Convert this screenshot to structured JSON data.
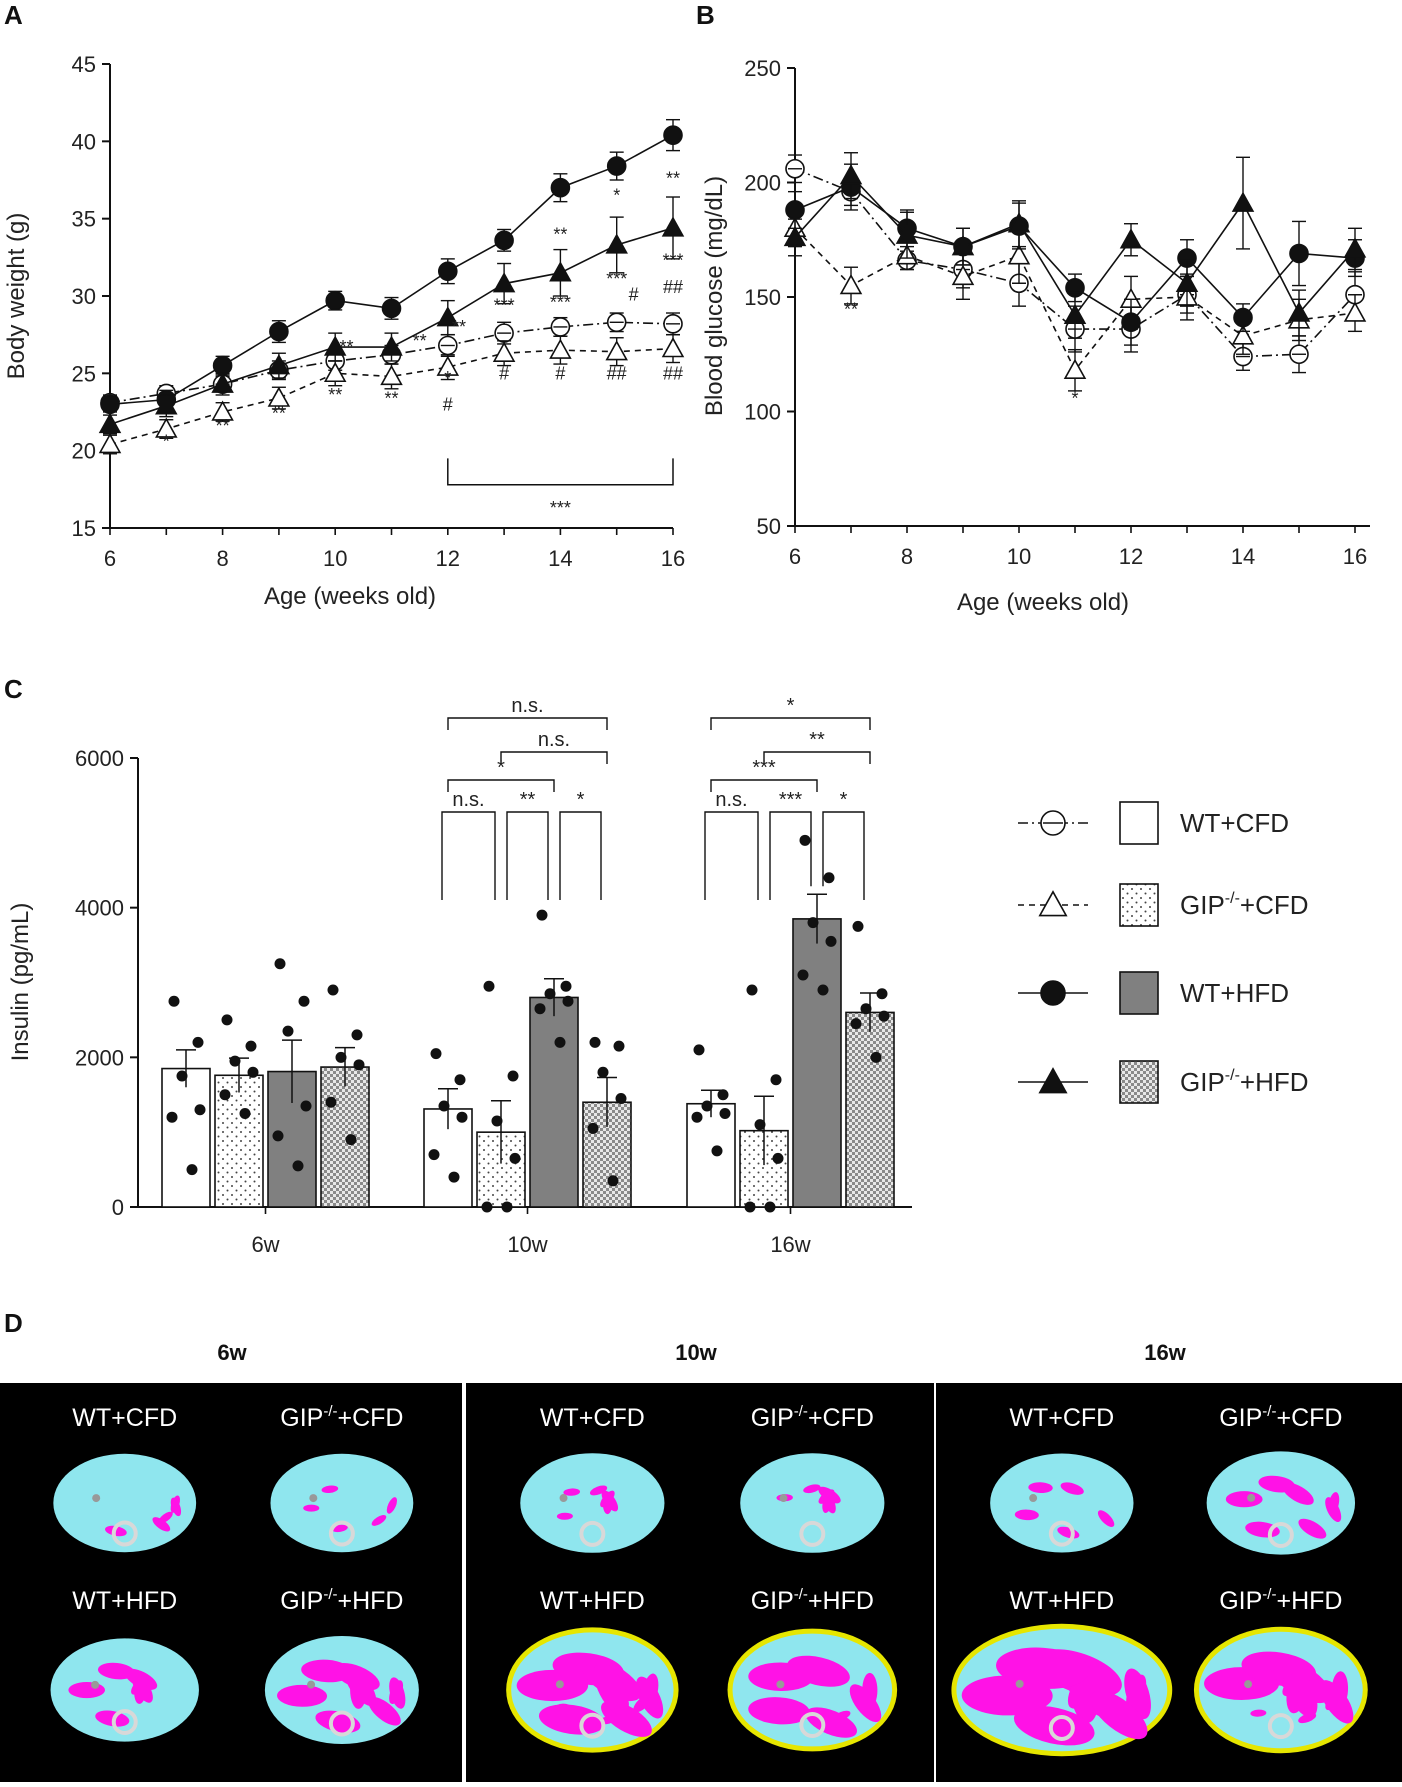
{
  "panel_labels": [
    "A",
    "B",
    "C",
    "D"
  ],
  "colors": {
    "lean": "#8fe6ee",
    "fat_visceral": "#ff12e6",
    "fat_sc": "#e6e600",
    "bone": "#d8d8d8",
    "bar_hfd": "#808080"
  },
  "legend": [
    {
      "name": "WT+CFD",
      "sup": "",
      "suffix": "",
      "marker": "open-circle",
      "line": "dashdot",
      "bar": "white"
    },
    {
      "name": "GIP",
      "sup": "-/-",
      "suffix": "+CFD",
      "marker": "open-triangle",
      "line": "dashed",
      "bar": "dotted"
    },
    {
      "name": "WT+HFD",
      "sup": "",
      "suffix": "",
      "marker": "filled-circle",
      "line": "solid",
      "bar": "grey"
    },
    {
      "name": "GIP",
      "sup": "-/-",
      "suffix": "+HFD",
      "marker": "filled-triangle",
      "line": "solid",
      "bar": "checker"
    }
  ],
  "chart_data": [
    {
      "panel": "A",
      "type": "line",
      "xlabel": "Age (weeks old)",
      "ylabel": "Body weight (g)",
      "xlim": [
        6,
        16
      ],
      "ylim": [
        15,
        45
      ],
      "xticks": [
        6,
        8,
        10,
        12,
        14,
        16
      ],
      "yticks": [
        15,
        20,
        25,
        30,
        35,
        40,
        45
      ],
      "x": [
        6,
        7,
        8,
        9,
        10,
        11,
        12,
        13,
        14,
        15,
        16
      ],
      "series": [
        {
          "name": "WT+CFD",
          "values": [
            23.1,
            23.7,
            24.3,
            25.2,
            25.8,
            26.2,
            26.8,
            27.6,
            28.0,
            28.3,
            28.2
          ],
          "err": [
            0.5,
            0.5,
            0.5,
            0.6,
            0.6,
            0.6,
            0.7,
            0.7,
            0.6,
            0.6,
            0.7
          ]
        },
        {
          "name": "GIP-/-+CFD",
          "values": [
            20.4,
            21.4,
            22.5,
            23.4,
            25.0,
            24.8,
            25.4,
            26.3,
            26.5,
            26.4,
            26.6
          ],
          "err": [
            0.6,
            0.6,
            0.6,
            0.7,
            0.8,
            0.8,
            0.8,
            0.8,
            0.9,
            0.9,
            0.9
          ]
        },
        {
          "name": "WT+HFD",
          "values": [
            23.0,
            23.3,
            25.5,
            27.7,
            29.7,
            29.2,
            31.6,
            33.6,
            37.0,
            38.4,
            40.4
          ],
          "err": [
            0.5,
            0.6,
            0.6,
            0.7,
            0.6,
            0.7,
            0.8,
            0.7,
            0.9,
            0.9,
            1.0
          ]
        },
        {
          "name": "GIP-/-+HFD",
          "values": [
            21.7,
            22.9,
            24.3,
            25.5,
            26.7,
            26.7,
            28.6,
            30.8,
            31.5,
            33.3,
            34.4
          ],
          "err": [
            0.6,
            0.7,
            0.7,
            0.8,
            0.9,
            0.9,
            1.1,
            1.3,
            1.5,
            1.8,
            2.0
          ]
        }
      ],
      "annotations": [
        {
          "x": 7,
          "y": 20.2,
          "text": "*"
        },
        {
          "x": 8,
          "y": 21.2,
          "text": "**"
        },
        {
          "x": 9,
          "y": 22.0,
          "text": "**"
        },
        {
          "x": 10,
          "y": 23.2,
          "text": "**"
        },
        {
          "x": 10.2,
          "y": 26.3,
          "text": "**"
        },
        {
          "x": 11,
          "y": 23.0,
          "text": "**"
        },
        {
          "x": 11.5,
          "y": 26.7,
          "text": "**"
        },
        {
          "x": 12.2,
          "y": 27.6,
          "text": "**"
        },
        {
          "x": 12,
          "y": 24.3,
          "text": "*"
        },
        {
          "x": 12,
          "y": 22.6,
          "text": "#"
        },
        {
          "x": 13,
          "y": 29.0,
          "text": "***"
        },
        {
          "x": 13,
          "y": 24.6,
          "text": "#"
        },
        {
          "x": 14,
          "y": 33.6,
          "text": "**"
        },
        {
          "x": 14,
          "y": 29.2,
          "text": "***"
        },
        {
          "x": 14,
          "y": 24.6,
          "text": "#"
        },
        {
          "x": 15,
          "y": 36.1,
          "text": "*"
        },
        {
          "x": 15,
          "y": 30.7,
          "text": "***"
        },
        {
          "x": 15.3,
          "y": 29.7,
          "text": "#"
        },
        {
          "x": 15,
          "y": 24.6,
          "text": "##"
        },
        {
          "x": 16,
          "y": 37.2,
          "text": "**"
        },
        {
          "x": 16,
          "y": 31.9,
          "text": "***"
        },
        {
          "x": 16,
          "y": 30.2,
          "text": "##"
        },
        {
          "x": 16,
          "y": 24.6,
          "text": "##"
        }
      ],
      "bracket": {
        "x_from": 12,
        "x_to": 16,
        "label": "***"
      }
    },
    {
      "panel": "B",
      "type": "line",
      "xlabel": "Age (weeks old)",
      "ylabel": "Blood glucose (mg/dL)",
      "xlim": [
        6,
        16
      ],
      "ylim": [
        50,
        250
      ],
      "xticks": [
        6,
        8,
        10,
        12,
        14,
        16
      ],
      "yticks": [
        50,
        100,
        150,
        200,
        250
      ],
      "x": [
        6,
        7,
        8,
        9,
        10,
        11,
        12,
        13,
        14,
        15,
        16
      ],
      "series": [
        {
          "name": "WT+CFD",
          "values": [
            206,
            196,
            166,
            162,
            156,
            136,
            136,
            151,
            124,
            125,
            151
          ],
          "err": [
            6,
            6,
            4,
            8,
            10,
            10,
            10,
            8,
            6,
            8,
            10
          ]
        },
        {
          "name": "GIP-/-+CFD",
          "values": [
            180,
            155,
            168,
            159,
            168,
            118,
            149,
            150,
            133,
            140,
            143
          ],
          "err": [
            8,
            8,
            6,
            10,
            12,
            9,
            10,
            10,
            8,
            9,
            8
          ]
        },
        {
          "name": "WT+HFD",
          "values": [
            188,
            198,
            180,
            172,
            181,
            154,
            139,
            167,
            141,
            169,
            167
          ],
          "err": [
            8,
            10,
            8,
            8,
            10,
            6,
            10,
            8,
            6,
            14,
            8
          ]
        },
        {
          "name": "GIP-/-+HFD",
          "values": [
            176,
            203,
            177,
            172,
            182,
            142,
            175,
            156,
            191,
            143,
            171
          ],
          "err": [
            8,
            10,
            10,
            8,
            10,
            10,
            7,
            10,
            20,
            10,
            9
          ]
        }
      ],
      "annotations": [
        {
          "x": 7,
          "y": 142,
          "text": "**"
        },
        {
          "x": 11,
          "y": 103,
          "text": "*"
        }
      ]
    },
    {
      "panel": "C",
      "type": "bar",
      "ylabel": "Insulin (pg/mL)",
      "categories": [
        "6w",
        "10w",
        "16w"
      ],
      "ylim": [
        0,
        6000
      ],
      "yticks": [
        0,
        2000,
        4000,
        6000
      ],
      "series": [
        {
          "name": "WT+CFD",
          "values": [
            1850,
            1310,
            1380
          ],
          "err": [
            250,
            270,
            180
          ],
          "points": [
            [
              2750,
              2200,
              1750,
              1300,
              1200,
              500
            ],
            [
              2050,
              1700,
              1350,
              1200,
              700,
              400
            ],
            [
              2100,
              1500,
              1350,
              1250,
              1200,
              750
            ]
          ]
        },
        {
          "name": "GIP-/-+CFD",
          "values": [
            1760,
            1000,
            1020
          ],
          "err": [
            230,
            420,
            460
          ],
          "points": [
            [
              2500,
              2150,
              1950,
              1800,
              1500,
              1250
            ],
            [
              2950,
              1750,
              1150,
              650,
              0,
              0
            ],
            [
              2900,
              1700,
              1100,
              650,
              0,
              0
            ]
          ]
        },
        {
          "name": "WT+HFD",
          "values": [
            1810,
            2800,
            3850
          ],
          "err": [
            420,
            250,
            330
          ],
          "points": [
            [
              3250,
              2750,
              2350,
              1350,
              950,
              550
            ],
            [
              3900,
              2950,
              2850,
              2750,
              2650,
              2200
            ],
            [
              4900,
              4400,
              3800,
              3550,
              3100,
              2900
            ]
          ]
        },
        {
          "name": "GIP-/-+HFD",
          "values": [
            1870,
            1400,
            2600
          ],
          "err": [
            260,
            330,
            260
          ],
          "points": [
            [
              2900,
              2300,
              2000,
              1900,
              1400,
              900
            ],
            [
              2200,
              2150,
              1800,
              1450,
              1050,
              350
            ],
            [
              3750,
              2850,
              2650,
              2550,
              2450,
              2000
            ]
          ]
        }
      ],
      "comparisons": [
        {
          "group": "10w",
          "from": 0,
          "to": 3,
          "label": "n.s."
        },
        {
          "group": "10w",
          "from": 1,
          "to": 3,
          "label": "n.s."
        },
        {
          "group": "10w",
          "from": 0,
          "to": 2,
          "label": "*"
        },
        {
          "group": "10w",
          "from": 0,
          "to": 1,
          "label": "n.s."
        },
        {
          "group": "10w",
          "from": 1,
          "to": 2,
          "label": "**"
        },
        {
          "group": "10w",
          "from": 2,
          "to": 3,
          "label": "*"
        },
        {
          "group": "16w",
          "from": 0,
          "to": 3,
          "label": "*"
        },
        {
          "group": "16w",
          "from": 1,
          "to": 3,
          "label": "**"
        },
        {
          "group": "16w",
          "from": 0,
          "to": 2,
          "label": "***"
        },
        {
          "group": "16w",
          "from": 0,
          "to": 1,
          "label": "n.s."
        },
        {
          "group": "16w",
          "from": 1,
          "to": 2,
          "label": "***"
        },
        {
          "group": "16w",
          "from": 2,
          "to": 3,
          "label": "*"
        }
      ]
    }
  ],
  "panel_d": {
    "columns": [
      "6w",
      "10w",
      "16w"
    ],
    "sup": "-/-",
    "tiles": [
      [
        "WT+CFD",
        "GIP",
        "+CFD"
      ],
      [
        "WT+HFD",
        "GIP",
        "+HFD"
      ]
    ]
  }
}
